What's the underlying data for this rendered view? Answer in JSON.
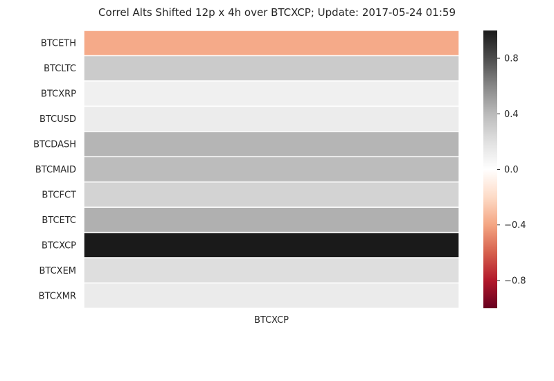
{
  "chart_data": {
    "type": "heatmap",
    "title": "Correl Alts Shifted 12p x 4h over BTCXCP; Update: 2017-05-24 01:59",
    "x_categories": [
      "BTCXCP"
    ],
    "y_categories": [
      "BTCETH",
      "BTCLTC",
      "BTCXRP",
      "BTCUSD",
      "BTCDASH",
      "BTCMAID",
      "BTCFCT",
      "BTCETC",
      "BTCXCP",
      "BTCXEM",
      "BTCXMR"
    ],
    "values": [
      -0.38,
      0.31,
      0.1,
      0.12,
      0.42,
      0.39,
      0.27,
      0.44,
      1.0,
      0.21,
      0.13
    ],
    "colorbar": {
      "range": [
        -1,
        1
      ],
      "ticks": [
        0.8,
        0.4,
        0.0,
        -0.4,
        -0.8
      ],
      "tick_labels": [
        "0.8",
        "0.4",
        "0.0",
        "−0.4",
        "−0.8"
      ],
      "colormap": "RdGy_r"
    },
    "grid": false
  }
}
